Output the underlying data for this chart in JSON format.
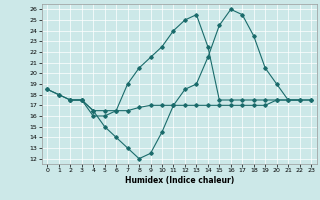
{
  "xlabel": "Humidex (Indice chaleur)",
  "bg_color": "#cce8e8",
  "line_color": "#1a6b6b",
  "grid_color": "#b0d8d8",
  "xlim": [
    -0.5,
    23.5
  ],
  "ylim": [
    11.5,
    26.5
  ],
  "yticks": [
    12,
    13,
    14,
    15,
    16,
    17,
    18,
    19,
    20,
    21,
    22,
    23,
    24,
    25,
    26
  ],
  "xticks": [
    0,
    1,
    2,
    3,
    4,
    5,
    6,
    7,
    8,
    9,
    10,
    11,
    12,
    13,
    14,
    15,
    16,
    17,
    18,
    19,
    20,
    21,
    22,
    23
  ],
  "line1_x": [
    0,
    1,
    2,
    3,
    4,
    5,
    6,
    7,
    8,
    9,
    10,
    11,
    12,
    13,
    14,
    15,
    16,
    17,
    18,
    19,
    20,
    21,
    22
  ],
  "line1_y": [
    18.5,
    18.0,
    17.5,
    17.5,
    16.5,
    15.0,
    14.0,
    13.0,
    12.0,
    12.5,
    14.5,
    17.0,
    18.5,
    19.0,
    21.5,
    24.5,
    26.0,
    25.5,
    23.5,
    20.5,
    19.0,
    17.5,
    17.5
  ],
  "line2_x": [
    0,
    1,
    2,
    3,
    4,
    5,
    6,
    7,
    8,
    9,
    10,
    11,
    12,
    13,
    14,
    15,
    16,
    17,
    18,
    19,
    20,
    23
  ],
  "line2_y": [
    18.5,
    18.0,
    17.5,
    17.5,
    16.5,
    16.5,
    16.5,
    16.5,
    16.8,
    17.0,
    17.0,
    17.0,
    17.0,
    17.0,
    17.0,
    17.0,
    17.0,
    17.0,
    17.0,
    17.0,
    17.5,
    17.5
  ],
  "line3_x": [
    2,
    3,
    4,
    5,
    6,
    7,
    8,
    9,
    10,
    11,
    12,
    13,
    14,
    15,
    16,
    17,
    18,
    19,
    20,
    21,
    22,
    23
  ],
  "line3_y": [
    17.5,
    17.5,
    16.0,
    16.0,
    16.5,
    19.0,
    20.5,
    21.5,
    22.5,
    24.0,
    25.0,
    25.5,
    22.5,
    17.5,
    17.5,
    17.5,
    17.5,
    17.5,
    17.5,
    17.5,
    17.5,
    17.5
  ]
}
